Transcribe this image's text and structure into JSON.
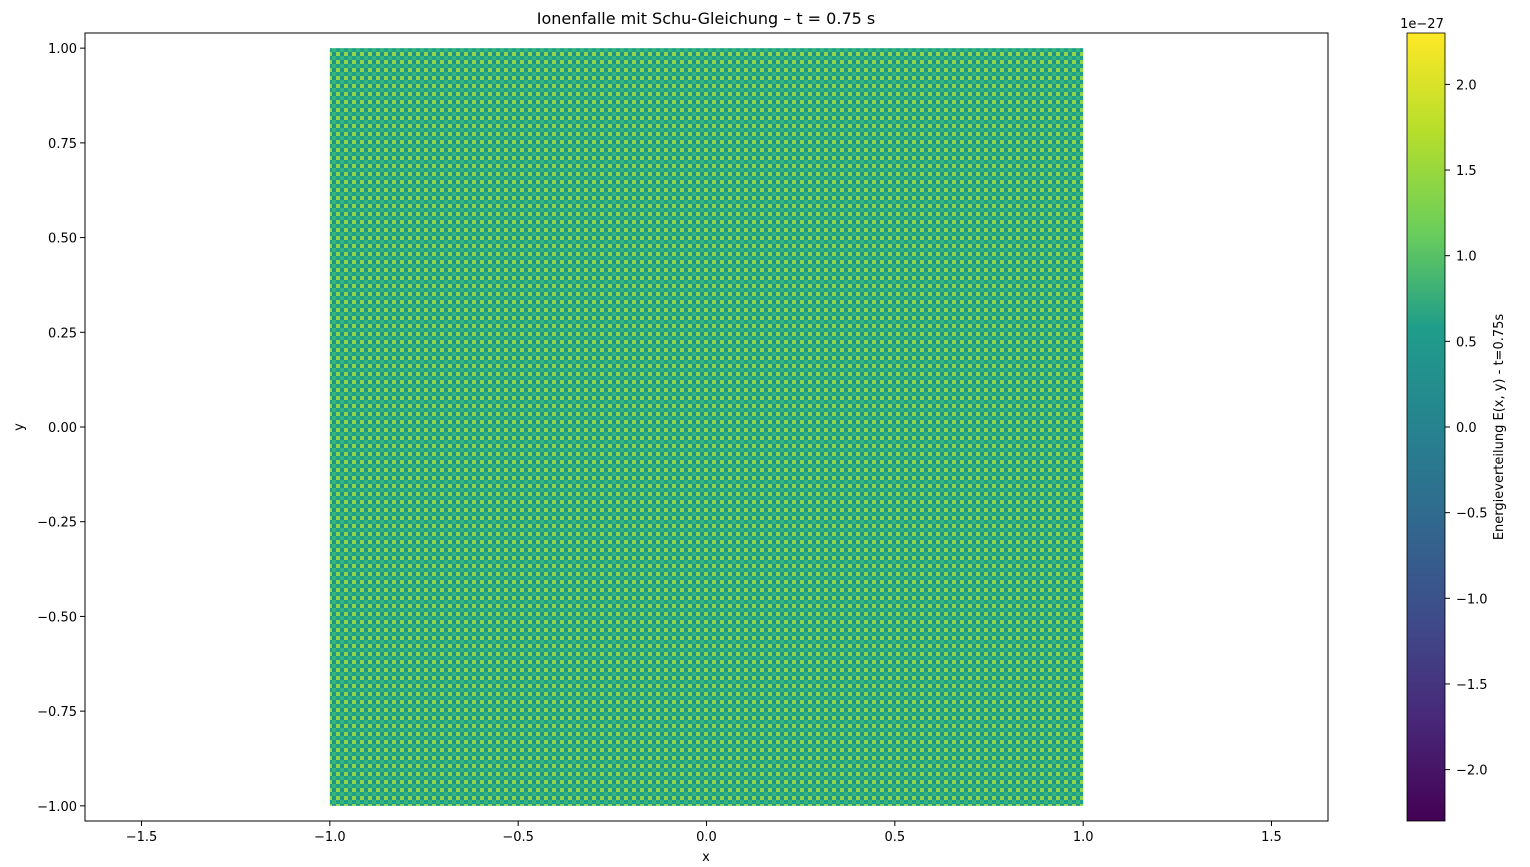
{
  "chart_data": {
    "type": "heatmap",
    "title": "Ionenfalle mit Schu-Gleichung – t = 0.75 s",
    "xlabel": "x",
    "ylabel": "y",
    "xlim": [
      -1.65,
      1.65
    ],
    "ylim": [
      -1.04,
      1.04
    ],
    "x_ticks": [
      -1.5,
      -1.0,
      -0.5,
      0.0,
      0.5,
      1.0,
      1.5
    ],
    "x_tick_labels": [
      "−1.5",
      "−1.0",
      "−0.5",
      "0.0",
      "0.5",
      "1.0",
      "1.5"
    ],
    "y_ticks": [
      1.0,
      0.75,
      0.5,
      0.25,
      0.0,
      -0.25,
      -0.5,
      -0.75,
      -1.0
    ],
    "y_tick_labels": [
      "1.00",
      "0.75",
      "0.50",
      "0.25",
      "0.00",
      "−0.25",
      "−0.50",
      "−0.75",
      "−1.00"
    ],
    "data_extent": {
      "x": [
        -1.0,
        1.0
      ],
      "y": [
        -1.0,
        1.0
      ]
    },
    "data_appearance": "fine checkerboard of values alternating roughly between 0.5e-27 and 1.5e-27 (green tones) across the whole square",
    "grid": false,
    "colorbar": {
      "label": "Energieverteilung E(x, y) - t=0.75s",
      "scale_text": "1e−27",
      "range": [
        -2.3,
        2.3
      ],
      "ticks": [
        2.0,
        1.5,
        1.0,
        0.5,
        0.0,
        -0.5,
        -1.0,
        -1.5,
        -2.0
      ],
      "tick_labels": [
        "2.0",
        "1.5",
        "1.0",
        "0.5",
        "0.0",
        "−0.5",
        "−1.0",
        "−1.5",
        "−2.0"
      ],
      "colormap": "viridis",
      "colormap_stops": [
        "#440154",
        "#482777",
        "#3f4a8a",
        "#31678e",
        "#26838f",
        "#1f9d8a",
        "#6cce5a",
        "#b6de2b",
        "#fee825"
      ]
    },
    "pattern_colors": [
      "#1f9e89",
      "#35b779",
      "#8fd744",
      "#21918c"
    ]
  }
}
